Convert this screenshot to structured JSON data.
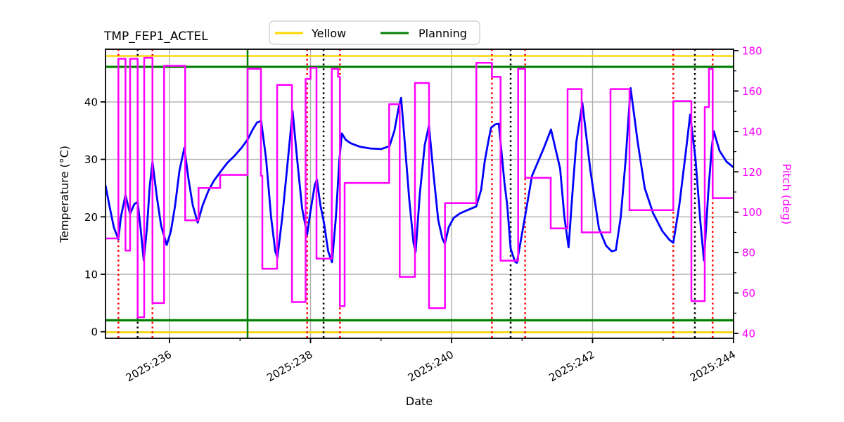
{
  "title": "TMP_FEP1_ACTEL",
  "colors": {
    "temperature_line": "#0000ff",
    "pitch_line": "#ff00ff",
    "yellow_limit": "#ffd700",
    "planning_limit": "#008000",
    "red_event": "#ff0000",
    "black_event": "#000000",
    "grid": "#b0b0b0",
    "spine": "#000000"
  },
  "chart_data": {
    "type": "line",
    "title": "TMP_FEP1_ACTEL",
    "xlabel": "Date",
    "ylabel_left": "Temperature (°C)",
    "ylabel_right": "Pitch (deg)",
    "grid": true,
    "legend_position": "upper center",
    "xlim": [
      235.092,
      244.0
    ],
    "ylim_left": [
      -1.14,
      49.17
    ],
    "ylim_right": [
      37.56,
      180.7
    ],
    "x_major_ticks": [
      236,
      238,
      240,
      242,
      244
    ],
    "x_major_labels": [
      "2025:236",
      "2025:238",
      "2025:240",
      "2025:242",
      "2025:244"
    ],
    "x_minor_ticks": [
      237,
      239,
      241,
      243
    ],
    "y_left_ticks": [
      0,
      10,
      20,
      30,
      40
    ],
    "y_right_ticks": [
      40,
      60,
      80,
      100,
      120,
      140,
      160,
      180
    ],
    "y_right_minor_ticks": [
      50,
      70,
      90,
      110,
      130,
      150,
      170
    ],
    "legend": [
      {
        "label": "Yellow",
        "color": "#ffd700"
      },
      {
        "label": "Planning",
        "color": "#008000"
      }
    ],
    "limit_lines": {
      "yellow": [
        -0.1,
        48.0
      ],
      "planning": [
        2.0,
        46.1
      ]
    },
    "event_lines": {
      "red_dotted": [
        235.275,
        235.758,
        237.952,
        238.417,
        240.572,
        241.044,
        243.145,
        243.703
      ],
      "black_dotted": [
        235.548,
        238.185,
        240.838,
        243.451
      ],
      "green_solid": [
        237.107
      ]
    },
    "series": [
      {
        "name": "Temperature",
        "axis": "left",
        "style": "line",
        "color": "#0000ff",
        "points": [
          [
            235.092,
            25.5
          ],
          [
            235.15,
            21.8
          ],
          [
            235.21,
            18.2
          ],
          [
            235.275,
            16.1
          ],
          [
            235.31,
            20.0
          ],
          [
            235.375,
            23.8
          ],
          [
            235.44,
            20.5
          ],
          [
            235.5,
            22.2
          ],
          [
            235.548,
            22.6
          ],
          [
            235.59,
            18.0
          ],
          [
            235.635,
            12.4
          ],
          [
            235.68,
            18.0
          ],
          [
            235.72,
            25.5
          ],
          [
            235.758,
            29.6
          ],
          [
            235.82,
            23.5
          ],
          [
            235.88,
            18.5
          ],
          [
            235.96,
            15.1
          ],
          [
            236.02,
            17.5
          ],
          [
            236.08,
            22.0
          ],
          [
            236.14,
            28.0
          ],
          [
            236.21,
            32.0
          ],
          [
            236.27,
            26.5
          ],
          [
            236.33,
            22.0
          ],
          [
            236.4,
            19.0
          ],
          [
            236.47,
            22.0
          ],
          [
            236.55,
            24.5
          ],
          [
            236.63,
            26.3
          ],
          [
            236.72,
            27.8
          ],
          [
            236.82,
            29.4
          ],
          [
            236.92,
            30.6
          ],
          [
            237.02,
            32.0
          ],
          [
            237.11,
            33.5
          ],
          [
            237.18,
            35.2
          ],
          [
            237.24,
            36.4
          ],
          [
            237.3,
            36.7
          ],
          [
            237.37,
            30.0
          ],
          [
            237.44,
            20.0
          ],
          [
            237.5,
            14.0
          ],
          [
            237.53,
            12.9
          ],
          [
            237.6,
            20.0
          ],
          [
            237.68,
            30.0
          ],
          [
            237.745,
            38.4
          ],
          [
            237.81,
            30.0
          ],
          [
            237.88,
            21.5
          ],
          [
            237.952,
            16.9
          ],
          [
            238.0,
            21.0
          ],
          [
            238.06,
            25.5
          ],
          [
            238.09,
            26.5
          ],
          [
            238.14,
            22.0
          ],
          [
            238.19,
            19.0
          ],
          [
            238.25,
            14.0
          ],
          [
            238.305,
            12.1
          ],
          [
            238.36,
            20.0
          ],
          [
            238.41,
            30.0
          ],
          [
            238.445,
            34.5
          ],
          [
            238.5,
            33.4
          ],
          [
            238.57,
            32.8
          ],
          [
            238.7,
            32.2
          ],
          [
            238.85,
            31.9
          ],
          [
            239.0,
            31.8
          ],
          [
            239.12,
            32.3
          ],
          [
            239.19,
            35.0
          ],
          [
            239.25,
            39.0
          ],
          [
            239.285,
            40.7
          ],
          [
            239.33,
            34.0
          ],
          [
            239.4,
            23.0
          ],
          [
            239.46,
            15.5
          ],
          [
            239.49,
            13.9
          ],
          [
            239.55,
            24.0
          ],
          [
            239.62,
            32.5
          ],
          [
            239.68,
            35.9
          ],
          [
            239.74,
            28.0
          ],
          [
            239.81,
            19.5
          ],
          [
            239.87,
            16.2
          ],
          [
            239.905,
            15.3
          ],
          [
            239.96,
            18.2
          ],
          [
            240.03,
            19.8
          ],
          [
            240.12,
            20.6
          ],
          [
            240.25,
            21.3
          ],
          [
            240.35,
            21.8
          ],
          [
            240.42,
            24.7
          ],
          [
            240.47,
            29.6
          ],
          [
            240.52,
            33.0
          ],
          [
            240.56,
            35.5
          ],
          [
            240.62,
            36.1
          ],
          [
            240.67,
            36.2
          ],
          [
            240.75,
            26.0
          ],
          [
            240.79,
            22.0
          ],
          [
            240.838,
            14.5
          ],
          [
            240.9,
            12.2
          ],
          [
            240.927,
            12.0
          ],
          [
            241.044,
            20.2
          ],
          [
            241.14,
            27.1
          ],
          [
            241.31,
            32.0
          ],
          [
            241.41,
            35.2
          ],
          [
            241.54,
            28.4
          ],
          [
            241.6,
            20.0
          ],
          [
            241.66,
            14.7
          ],
          [
            241.72,
            25.0
          ],
          [
            241.77,
            33.0
          ],
          [
            241.855,
            39.8
          ],
          [
            241.97,
            28.0
          ],
          [
            242.09,
            18.0
          ],
          [
            242.19,
            15.0
          ],
          [
            242.27,
            14.0
          ],
          [
            242.33,
            14.2
          ],
          [
            242.4,
            20.0
          ],
          [
            242.47,
            30.0
          ],
          [
            242.52,
            39.0
          ],
          [
            242.54,
            42.4
          ],
          [
            242.64,
            33.0
          ],
          [
            242.74,
            25.0
          ],
          [
            242.86,
            20.6
          ],
          [
            242.99,
            17.5
          ],
          [
            243.09,
            16.0
          ],
          [
            243.145,
            15.5
          ],
          [
            243.23,
            22.0
          ],
          [
            243.32,
            31.0
          ],
          [
            243.385,
            37.8
          ],
          [
            243.46,
            30.0
          ],
          [
            243.53,
            19.0
          ],
          [
            243.58,
            12.4
          ],
          [
            243.64,
            24.0
          ],
          [
            243.69,
            32.0
          ],
          [
            243.72,
            34.9
          ],
          [
            243.8,
            31.5
          ],
          [
            243.9,
            29.6
          ],
          [
            244.0,
            28.6
          ]
        ]
      },
      {
        "name": "Pitch",
        "axis": "right",
        "style": "step",
        "color": "#ff00ff",
        "points": [
          [
            235.092,
            87
          ],
          [
            235.275,
            176
          ],
          [
            235.375,
            81
          ],
          [
            235.441,
            176
          ],
          [
            235.548,
            48
          ],
          [
            235.641,
            176.5
          ],
          [
            235.758,
            55
          ],
          [
            235.923,
            172.5
          ],
          [
            236.222,
            96
          ],
          [
            236.412,
            112
          ],
          [
            236.718,
            118.5
          ],
          [
            237.107,
            171
          ],
          [
            237.297,
            118
          ],
          [
            237.317,
            72
          ],
          [
            237.526,
            163
          ],
          [
            237.736,
            55.5
          ],
          [
            237.93,
            166
          ],
          [
            238.0,
            171.5
          ],
          [
            238.085,
            77
          ],
          [
            238.301,
            171
          ],
          [
            238.39,
            167
          ],
          [
            238.417,
            53.5
          ],
          [
            238.484,
            114.5
          ],
          [
            239.115,
            153.5
          ],
          [
            239.265,
            68
          ],
          [
            239.481,
            164
          ],
          [
            239.681,
            52.5
          ],
          [
            239.907,
            104.5
          ],
          [
            240.352,
            174
          ],
          [
            240.572,
            167
          ],
          [
            240.695,
            76
          ],
          [
            240.945,
            171
          ],
          [
            241.044,
            117
          ],
          [
            241.406,
            92
          ],
          [
            241.646,
            161
          ],
          [
            241.845,
            90
          ],
          [
            242.254,
            161
          ],
          [
            242.524,
            101
          ],
          [
            243.145,
            155
          ],
          [
            243.401,
            56
          ],
          [
            243.591,
            152
          ],
          [
            243.651,
            171
          ],
          [
            243.704,
            107
          ]
        ]
      }
    ]
  }
}
